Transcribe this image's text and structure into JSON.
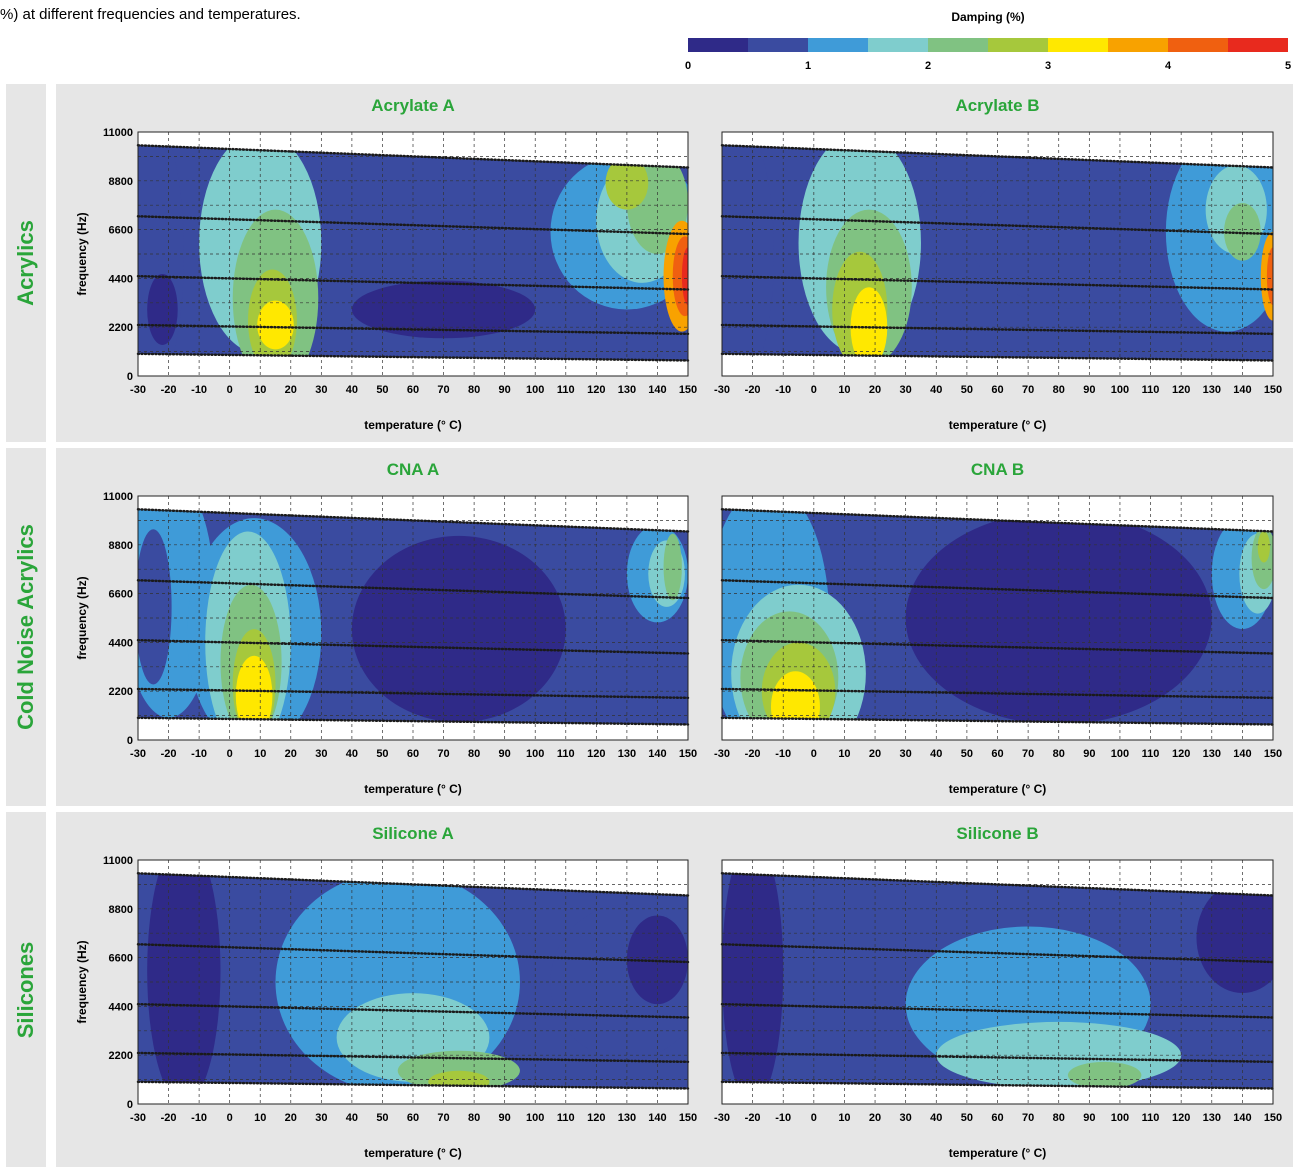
{
  "caption": "%) at different frequencies and temperatures.",
  "colorbar": {
    "title": "Damping (%)",
    "ticks": [
      "0",
      "1",
      "2",
      "3",
      "4",
      "5"
    ],
    "colors": [
      "#2f2a88",
      "#3a4ba0",
      "#3f9bd8",
      "#7fcdcd",
      "#80c282",
      "#a6c83c",
      "#ffe800",
      "#f8a200",
      "#f06010",
      "#e82a1e"
    ]
  },
  "groups": [
    {
      "label": "Acrylics"
    },
    {
      "label": "Cold Noise Acrylics"
    },
    {
      "label": "Silicones"
    }
  ],
  "chart_data": [
    {
      "type": "heatmap",
      "title": "Acrylate A",
      "xlabel": "temperature (° C)",
      "ylabel": "frequency (Hz)",
      "xlim": [
        -30,
        150
      ],
      "ylim": [
        0,
        11000
      ],
      "xticks": [
        "-30",
        "-20",
        "-10",
        "0",
        "10",
        "20",
        "30",
        "40",
        "50",
        "60",
        "70",
        "80",
        "90",
        "100",
        "110",
        "120",
        "130",
        "140",
        "150"
      ],
      "yticks": [
        "0",
        "2200",
        "4400",
        "6600",
        "8800",
        "11000"
      ]
    },
    {
      "type": "heatmap",
      "title": "Acrylate B",
      "xlabel": "temperature (° C)",
      "ylabel": "",
      "xlim": [
        -30,
        150
      ],
      "ylim": [
        0,
        11000
      ],
      "xticks": [
        "-30",
        "-20",
        "-10",
        "0",
        "10",
        "20",
        "30",
        "40",
        "50",
        "60",
        "70",
        "80",
        "90",
        "100",
        "110",
        "120",
        "130",
        "140",
        "150"
      ],
      "yticks": []
    },
    {
      "type": "heatmap",
      "title": "CNA A",
      "xlabel": "temperature (° C)",
      "ylabel": "frequency (Hz)",
      "xlim": [
        -30,
        150
      ],
      "ylim": [
        0,
        11000
      ],
      "xticks": [
        "-30",
        "-20",
        "-10",
        "0",
        "10",
        "20",
        "30",
        "40",
        "50",
        "60",
        "70",
        "80",
        "90",
        "100",
        "110",
        "120",
        "130",
        "140",
        "150"
      ],
      "yticks": [
        "0",
        "2200",
        "4400",
        "6600",
        "8800",
        "11000"
      ]
    },
    {
      "type": "heatmap",
      "title": "CNA B",
      "xlabel": "temperature (° C)",
      "ylabel": "",
      "xlim": [
        -30,
        150
      ],
      "ylim": [
        0,
        11000
      ],
      "xticks": [
        "-30",
        "-20",
        "-10",
        "0",
        "10",
        "20",
        "30",
        "40",
        "50",
        "60",
        "70",
        "80",
        "90",
        "100",
        "110",
        "120",
        "130",
        "140",
        "150"
      ],
      "yticks": []
    },
    {
      "type": "heatmap",
      "title": "Silicone A",
      "xlabel": "temperature (° C)",
      "ylabel": "frequency (Hz)",
      "xlim": [
        -30,
        150
      ],
      "ylim": [
        0,
        11000
      ],
      "xticks": [
        "-30",
        "-20",
        "-10",
        "0",
        "10",
        "20",
        "30",
        "40",
        "50",
        "60",
        "70",
        "80",
        "90",
        "100",
        "110",
        "120",
        "130",
        "140",
        "150"
      ],
      "yticks": [
        "0",
        "2200",
        "4400",
        "6600",
        "8800",
        "11000"
      ]
    },
    {
      "type": "heatmap",
      "title": "Silicone B",
      "xlabel": "temperature (° C)",
      "ylabel": "",
      "xlim": [
        -30,
        150
      ],
      "ylim": [
        0,
        11000
      ],
      "xticks": [
        "-30",
        "-20",
        "-10",
        "0",
        "10",
        "20",
        "30",
        "40",
        "50",
        "60",
        "70",
        "80",
        "90",
        "100",
        "110",
        "120",
        "130",
        "140",
        "150"
      ],
      "yticks": []
    }
  ]
}
